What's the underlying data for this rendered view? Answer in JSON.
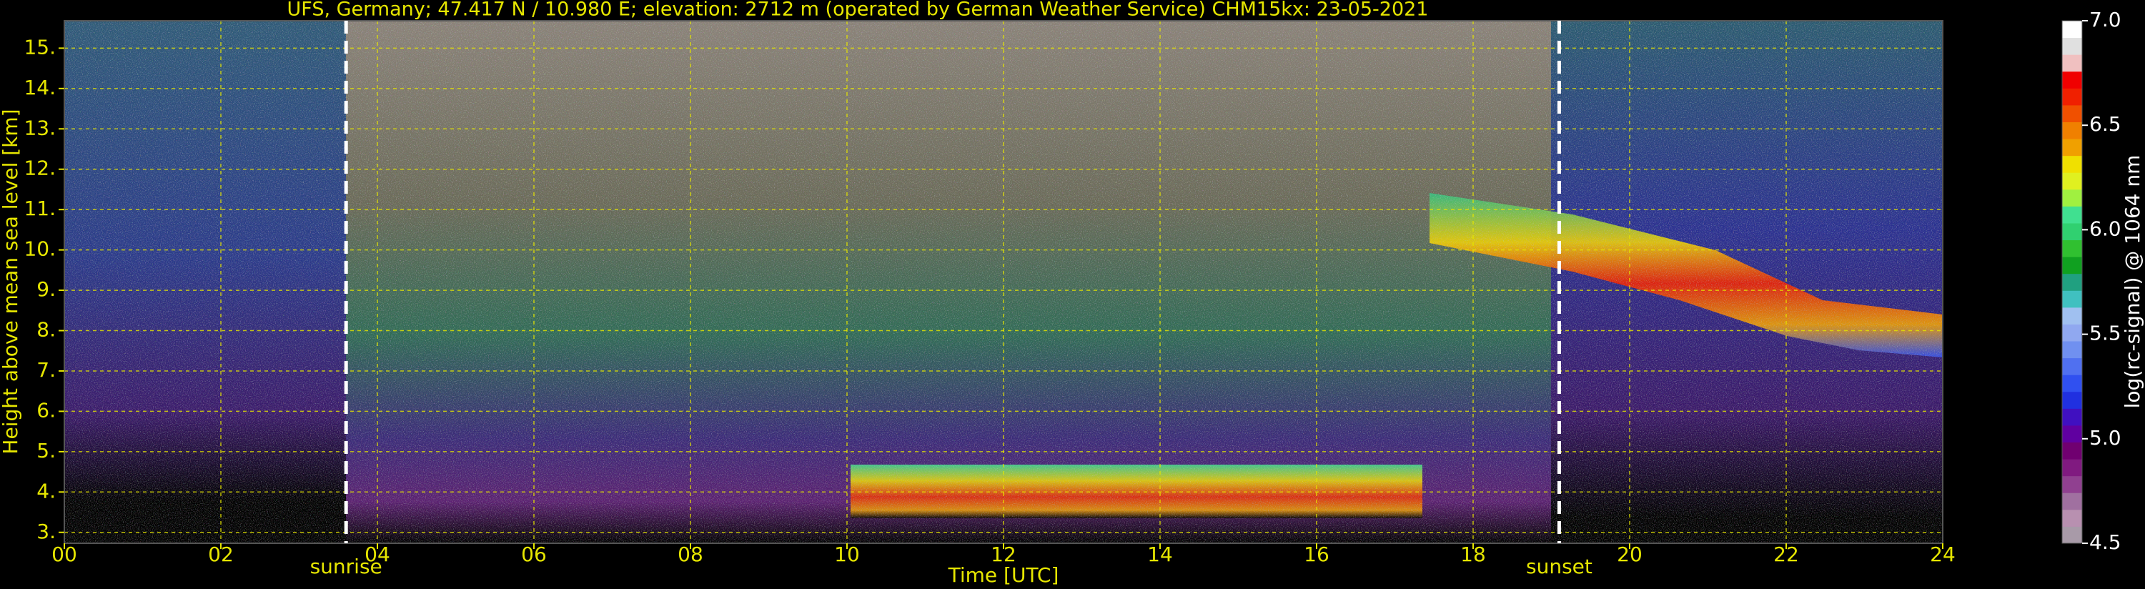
{
  "chart_data": {
    "type": "heatmap",
    "title": "UFS, Germany; 47.417 N / 10.980 E; elevation: 2712 m  (operated by German Weather Service)    CHM15kx: 23-05-2021",
    "xlabel": "Time [UTC]",
    "ylabel": "Height above mean sea level [km]",
    "xlim": [
      0,
      24
    ],
    "ylim": [
      2.73,
      15.68
    ],
    "xticks": [
      {
        "value": 0,
        "label": "00"
      },
      {
        "value": 2,
        "label": "02"
      },
      {
        "value": 4,
        "label": "04"
      },
      {
        "value": 6,
        "label": "06"
      },
      {
        "value": 8,
        "label": "08"
      },
      {
        "value": 10,
        "label": "10"
      },
      {
        "value": 12,
        "label": "12"
      },
      {
        "value": 14,
        "label": "14"
      },
      {
        "value": 16,
        "label": "16"
      },
      {
        "value": 18,
        "label": "18"
      },
      {
        "value": 20,
        "label": "20"
      },
      {
        "value": 22,
        "label": "22"
      },
      {
        "value": 24,
        "label": "24"
      }
    ],
    "yticks": [
      {
        "value": 3,
        "label": "3."
      },
      {
        "value": 4,
        "label": "4."
      },
      {
        "value": 5,
        "label": "5."
      },
      {
        "value": 6,
        "label": "6."
      },
      {
        "value": 7,
        "label": "7."
      },
      {
        "value": 8,
        "label": "8."
      },
      {
        "value": 9,
        "label": "9."
      },
      {
        "value": 10,
        "label": "10."
      },
      {
        "value": 11,
        "label": "11."
      },
      {
        "value": 12,
        "label": "12."
      },
      {
        "value": 13,
        "label": "13."
      },
      {
        "value": 14,
        "label": "14."
      },
      {
        "value": 15,
        "label": "15."
      }
    ],
    "grid": true,
    "grid_color": "#e6e600",
    "text_color": "#e6e600",
    "annotations": [
      {
        "label": "sunrise",
        "x": 3.6
      },
      {
        "label": "sunset",
        "x": 19.1
      }
    ],
    "colorbar": {
      "label": "log(rc-signal) @ 1064 nm",
      "clim": [
        4.5,
        7.0
      ],
      "ticks": [
        4.5,
        {
          "value": 5.0,
          "label": "5.0"
        },
        5.5,
        {
          "value": 6.0,
          "label": "6.0"
        },
        6.5,
        {
          "value": 7.0,
          "label": "7.0"
        }
      ],
      "colors": [
        "#a89aa8",
        "#b890b0",
        "#a070a0",
        "#904090",
        "#801a80",
        "#700070",
        "#6000a0",
        "#4010c0",
        "#2030e0",
        "#3050f0",
        "#5070f0",
        "#7090f0",
        "#90a8f0",
        "#a0c0f0",
        "#40c0c0",
        "#20a080",
        "#10a020",
        "#30c030",
        "#30d070",
        "#40e090",
        "#a0f040",
        "#e0f020",
        "#f0e000",
        "#f0a000",
        "#f08000",
        "#f05000",
        "#f02000",
        "#f00000",
        "#f0c0c0",
        "#e0e0e0",
        "#ffffff"
      ]
    }
  }
}
